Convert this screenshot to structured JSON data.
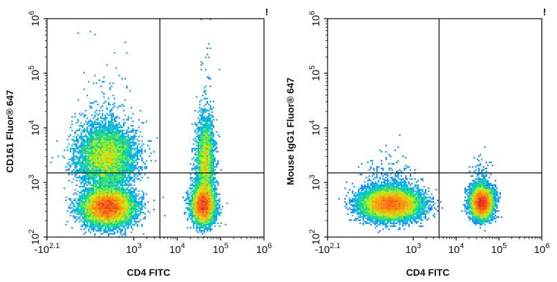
{
  "chart_data": [
    {
      "type": "scatter",
      "subtype": "flow-cytometry-density-plot",
      "xlabel": "CD4 FITC",
      "ylabel": "CD161 Fluor® 647",
      "x_scale": "biexponential",
      "y_scale": "log",
      "xlim": [
        -126,
        1000000
      ],
      "ylim": [
        100,
        1000000
      ],
      "x_ticks": [
        {
          "base": "-10",
          "exp": "2.1",
          "value": -126
        },
        {
          "base": "10",
          "exp": "3",
          "value": 1000
        },
        {
          "base": "10",
          "exp": "4",
          "value": 10000
        },
        {
          "base": "10",
          "exp": "5",
          "value": 100000
        },
        {
          "base": "10",
          "exp": "6",
          "value": 1000000
        }
      ],
      "y_ticks": [
        {
          "base": "10",
          "exp": "2",
          "value": 100
        },
        {
          "base": "10",
          "exp": "3",
          "value": 1000
        },
        {
          "base": "10",
          "exp": "4",
          "value": 10000
        },
        {
          "base": "10",
          "exp": "5",
          "value": 100000
        },
        {
          "base": "10",
          "exp": "6",
          "value": 1000000
        }
      ],
      "quadrant_gate": {
        "x": 4000,
        "y": 1500
      },
      "corner_mark": "!",
      "populations": [
        {
          "x_center": 250,
          "y_center": 350,
          "x_spread_decades": 0.28,
          "y_spread_decades": 0.16,
          "weight": 0.42
        },
        {
          "x_center": 230,
          "y_center": 3000,
          "x_spread_decades": 0.33,
          "y_spread_decades": 0.28,
          "weight": 0.25
        },
        {
          "x_center": 40000,
          "y_center": 380,
          "x_spread_decades": 0.13,
          "y_spread_decades": 0.17,
          "weight": 0.22
        },
        {
          "x_center": 45000,
          "y_center": 2500,
          "x_spread_decades": 0.1,
          "y_spread_decades": 0.38,
          "weight": 0.11
        }
      ]
    },
    {
      "type": "scatter",
      "subtype": "flow-cytometry-density-plot",
      "xlabel": "CD4 FITC",
      "ylabel": "Mouse IgG1 Fluor® 647",
      "x_scale": "biexponential",
      "y_scale": "log",
      "xlim": [
        -126,
        1000000
      ],
      "ylim": [
        100,
        1000000
      ],
      "x_ticks": [
        {
          "base": "-10",
          "exp": "2.1",
          "value": -126
        },
        {
          "base": "10",
          "exp": "3",
          "value": 1000
        },
        {
          "base": "10",
          "exp": "4",
          "value": 10000
        },
        {
          "base": "10",
          "exp": "5",
          "value": 100000
        },
        {
          "base": "10",
          "exp": "6",
          "value": 1000000
        }
      ],
      "y_ticks": [
        {
          "base": "10",
          "exp": "2",
          "value": 100
        },
        {
          "base": "10",
          "exp": "3",
          "value": 1000
        },
        {
          "base": "10",
          "exp": "4",
          "value": 10000
        },
        {
          "base": "10",
          "exp": "5",
          "value": 100000
        },
        {
          "base": "10",
          "exp": "6",
          "value": 1000000
        }
      ],
      "quadrant_gate": {
        "x": 4000,
        "y": 1500
      },
      "corner_mark": "!",
      "populations": [
        {
          "x_center": 300,
          "y_center": 400,
          "x_spread_decades": 0.32,
          "y_spread_decades": 0.13,
          "weight": 0.62
        },
        {
          "x_center": 40000,
          "y_center": 420,
          "x_spread_decades": 0.12,
          "y_spread_decades": 0.13,
          "weight": 0.38
        }
      ]
    }
  ]
}
